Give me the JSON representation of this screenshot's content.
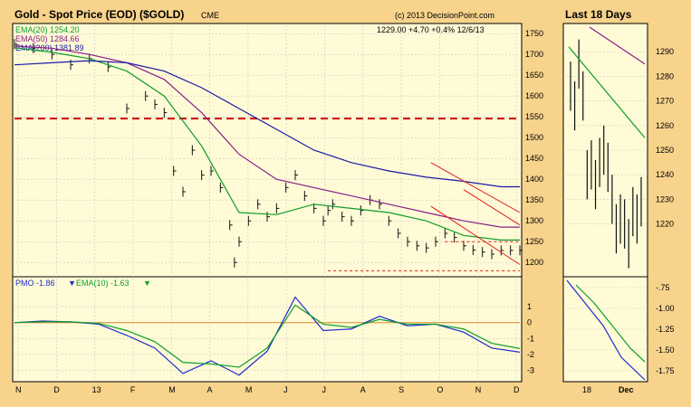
{
  "main": {
    "title": "Gold - Spot Price (EOD) ($GOLD)",
    "exchange": "CME",
    "copyright": "(c) 2013 DecisionPoint.com",
    "quote": "1229.00  +4.70  +0.4%  12/6/13",
    "ema_labels": [
      "EMA(20) 1254.20",
      "EMA(50) 1284.66",
      "EMA(200) 1381.89"
    ]
  },
  "pmo": {
    "label1": "PMO  -1.86",
    "label2": "EMA(10)  -1.63"
  },
  "side": {
    "title": "Last 18 Days"
  },
  "colors": {
    "panel_bg": "#fffbd6",
    "frame_bg": "#f7d38c",
    "ema20": "#0b9e2a",
    "ema50": "#8a1e8a",
    "ema200": "#1a1aa8",
    "pmo": "#1f2bd0",
    "support": "#d11010",
    "channel": "#e11a1a"
  },
  "chart_data": [
    {
      "type": "line",
      "title": "Gold - Spot Price (EOD) ($GOLD)",
      "ylim": [
        1170,
        1770
      ],
      "yticks": [
        1200,
        1250,
        1300,
        1350,
        1400,
        1450,
        1500,
        1550,
        1600,
        1650,
        1700,
        1750
      ],
      "xticks": [
        "N",
        "D",
        "13",
        "F",
        "M",
        "A",
        "M",
        "J",
        "J",
        "A",
        "S",
        "O",
        "N",
        "D"
      ],
      "support_level": 1546,
      "series": [
        {
          "name": "Price",
          "x": [
            0,
            2,
            4,
            6,
            8,
            10,
            12,
            14,
            15,
            16,
            17,
            18,
            19,
            20,
            21,
            22,
            23,
            23.5,
            24,
            25,
            26,
            27,
            28,
            29,
            30,
            31,
            32,
            33,
            33.5,
            34,
            35,
            36,
            37,
            38,
            39,
            40,
            41,
            42,
            43,
            44,
            45,
            46,
            47,
            48,
            49,
            50,
            51,
            52,
            53,
            54
          ],
          "values": [
            1725,
            1715,
            1700,
            1675,
            1690,
            1670,
            1570,
            1600,
            1580,
            1560,
            1420,
            1370,
            1470,
            1410,
            1420,
            1380,
            1290,
            1200,
            1250,
            1300,
            1340,
            1310,
            1330,
            1380,
            1410,
            1360,
            1330,
            1300,
            1325,
            1340,
            1310,
            1300,
            1325,
            1350,
            1340,
            1300,
            1270,
            1250,
            1240,
            1235,
            1250,
            1270,
            1260,
            1240,
            1230,
            1225,
            1220,
            1229,
            1229,
            1229
          ]
        },
        {
          "name": "EMA(20)",
          "x": [
            0,
            4,
            8,
            12,
            16,
            20,
            24,
            28,
            32,
            36,
            40,
            44,
            48,
            52,
            54
          ],
          "values": [
            1716,
            1705,
            1690,
            1660,
            1600,
            1480,
            1320,
            1315,
            1340,
            1330,
            1320,
            1300,
            1265,
            1254,
            1254
          ]
        },
        {
          "name": "EMA(50)",
          "x": [
            0,
            4,
            8,
            12,
            16,
            20,
            24,
            28,
            32,
            36,
            40,
            44,
            48,
            52,
            54
          ],
          "values": [
            1720,
            1715,
            1700,
            1680,
            1640,
            1560,
            1460,
            1400,
            1380,
            1360,
            1340,
            1320,
            1300,
            1285,
            1285
          ]
        },
        {
          "name": "EMA(200)",
          "x": [
            0,
            4,
            8,
            12,
            16,
            20,
            24,
            28,
            32,
            36,
            40,
            44,
            48,
            52,
            54
          ],
          "values": [
            1675,
            1680,
            1685,
            1680,
            1660,
            1620,
            1570,
            1520,
            1470,
            1440,
            1420,
            1405,
            1395,
            1382,
            1382
          ]
        }
      ]
    },
    {
      "type": "line",
      "ylim": [
        -3.6,
        2.2
      ],
      "yticks": [
        -3,
        -2,
        -1,
        0,
        1
      ],
      "series": [
        {
          "name": "PMO",
          "x": [
            0,
            3,
            6,
            9,
            12,
            15,
            18,
            21,
            24,
            27,
            30,
            33,
            36,
            39,
            42,
            45,
            48,
            51,
            54
          ],
          "values": [
            0,
            0.1,
            0.05,
            -0.1,
            -0.8,
            -1.6,
            -3.2,
            -2.4,
            -3.3,
            -1.8,
            1.6,
            -0.5,
            -0.4,
            0.4,
            -0.2,
            -0.1,
            -0.6,
            -1.6,
            -1.86
          ]
        },
        {
          "name": "EMA(10)",
          "x": [
            0,
            3,
            6,
            9,
            12,
            15,
            18,
            21,
            24,
            27,
            30,
            33,
            36,
            39,
            42,
            45,
            48,
            51,
            54
          ],
          "values": [
            0,
            0.05,
            0.05,
            -0.05,
            -0.5,
            -1.2,
            -2.5,
            -2.6,
            -2.8,
            -1.6,
            1.1,
            -0.1,
            -0.3,
            0.2,
            -0.1,
            -0.1,
            -0.4,
            -1.3,
            -1.63
          ]
        }
      ]
    },
    {
      "type": "bar",
      "title": "Last 18 Days",
      "ylim": [
        1200,
        1300
      ],
      "yticks": [
        1220,
        1230,
        1240,
        1250,
        1260,
        1270,
        1280,
        1290
      ],
      "xticks": [
        "18",
        "Dec"
      ],
      "values": [
        1276,
        1268,
        1285,
        1272,
        1240,
        1244,
        1236,
        1245,
        1250,
        1243,
        1230,
        1218,
        1222,
        1220,
        1212,
        1225,
        1222,
        1229
      ]
    }
  ]
}
